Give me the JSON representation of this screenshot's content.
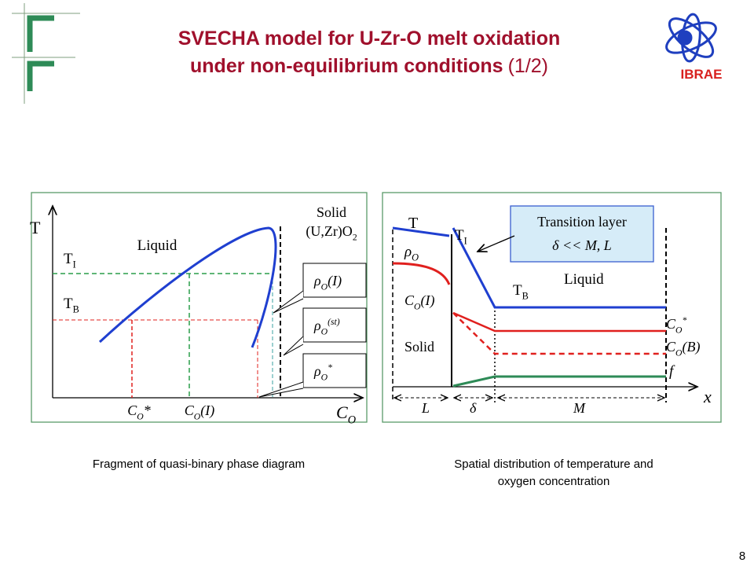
{
  "header": {
    "title_line1": "SVECHA model for U-Zr-O melt oxidation",
    "title_line2": "under non-equilibrium conditions",
    "title_suffix": "(1/2)",
    "logo": "IBRAE"
  },
  "left_diagram": {
    "axis_y": "T",
    "axis_x": {
      "base": "C",
      "sub": "O"
    },
    "solid_line1": "Solid",
    "solid_line2": {
      "base": "(U,Zr)O",
      "sub": "2"
    },
    "liquid": "Liquid",
    "t_i": {
      "base": "T",
      "sub": "I"
    },
    "t_b": {
      "base": "T",
      "sub": "B"
    },
    "boxes": [
      {
        "base": "ρ",
        "sub": "O",
        "after": "(I)"
      },
      {
        "base": "ρ",
        "sub": "O",
        "sup": "(st)"
      },
      {
        "base": "ρ",
        "sub": "O",
        "sup": "*"
      }
    ],
    "x_labels": [
      {
        "base": "C",
        "sub": "O",
        "after": "*"
      },
      {
        "base": "C",
        "sub": "O",
        "after": "(I)"
      }
    ],
    "caption": "Fragment of quasi-binary phase diagram"
  },
  "right_diagram": {
    "t": "T",
    "t_i": {
      "base": "T",
      "sub": "I"
    },
    "t_b": {
      "base": "T",
      "sub": "B"
    },
    "rho": {
      "base": "ρ",
      "sub": "O"
    },
    "c_i": {
      "base": "C",
      "sub": "O",
      "after": "(I)"
    },
    "solid": "Solid",
    "liquid": "Liquid",
    "transition_line1": "Transition layer",
    "transition_line2": "δ << M, L",
    "c_star": {
      "base": "C",
      "sub": "O",
      "sup": "*"
    },
    "c_b": {
      "base": "C",
      "sub": "O",
      "after": "(B)"
    },
    "f": "f",
    "x": "x",
    "l": "L",
    "delta": "δ",
    "m": "M",
    "caption_line1": "Spatial distribution of temperature and",
    "caption_line2": "oxygen concentration"
  },
  "page_number": "8"
}
